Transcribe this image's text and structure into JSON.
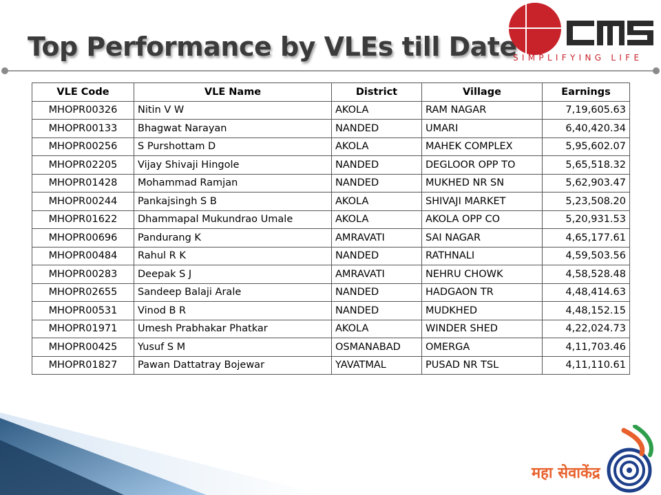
{
  "slide": {
    "title": "Top Performance by VLEs till Date"
  },
  "logo": {
    "wordmark": "cms",
    "tagline": "SIMPLIFYING LIFE",
    "accent_color": "#c8222a"
  },
  "table": {
    "headers": [
      "VLE Code",
      "VLE Name",
      "District",
      "Village",
      "Earnings"
    ],
    "rows": [
      [
        "MHOPR00326",
        "Nitin V W",
        "AKOLA",
        "RAM NAGAR",
        "7,19,605.63"
      ],
      [
        "MHOPR00133",
        "Bhagwat Narayan",
        "NANDED",
        "UMARI",
        "6,40,420.34"
      ],
      [
        "MHOPR00256",
        "S Purshottam D",
        "AKOLA",
        "MAHEK COMPLEX",
        "5,95,602.07"
      ],
      [
        "MHOPR02205",
        "Vijay Shivaji Hingole",
        "NANDED",
        "DEGLOOR OPP TO",
        "5,65,518.32"
      ],
      [
        "MHOPR01428",
        "Mohammad Ramjan",
        "NANDED",
        "MUKHED NR SN",
        "5,62,903.47"
      ],
      [
        "MHOPR00244",
        "Pankajsingh S B",
        "AKOLA",
        "SHIVAJI MARKET",
        "5,23,508.20"
      ],
      [
        "MHOPR01622",
        "Dhammapal Mukundrao Umale",
        "AKOLA",
        "AKOLA OPP CO",
        "5,20,931.53"
      ],
      [
        "MHOPR00696",
        "Pandurang K",
        "AMRAVATI",
        "SAI NAGAR",
        "4,65,177.61"
      ],
      [
        "MHOPR00484",
        "Rahul R K",
        "NANDED",
        "RATHNALI",
        "4,59,503.56"
      ],
      [
        "MHOPR00283",
        "Deepak S J",
        "AMRAVATI",
        "NEHRU CHOWK",
        "4,58,528.48"
      ],
      [
        "MHOPR02655",
        "Sandeep Balaji Arale",
        "NANDED",
        "HADGAON TR",
        "4,48,414.63"
      ],
      [
        "MHOPR00531",
        "Vinod B R",
        "NANDED",
        "MUDKHED",
        "4,48,152.15"
      ],
      [
        "MHOPR01971",
        "Umesh Prabhakar Phatkar",
        "AKOLA",
        "WINDER SHED",
        "4,22,024.73"
      ],
      [
        "MHOPR00425",
        "Yusuf S M",
        "OSMANABAD",
        "OMERGA",
        "4,11,703.46"
      ],
      [
        "MHOPR01827",
        "Pawan Dattatray Bojewar",
        "YAVATMAL",
        "PUSAD NR TSL",
        "4,11,110.61"
      ]
    ]
  },
  "footer_logo": {
    "text": "महा सेवाकेंद्र"
  }
}
